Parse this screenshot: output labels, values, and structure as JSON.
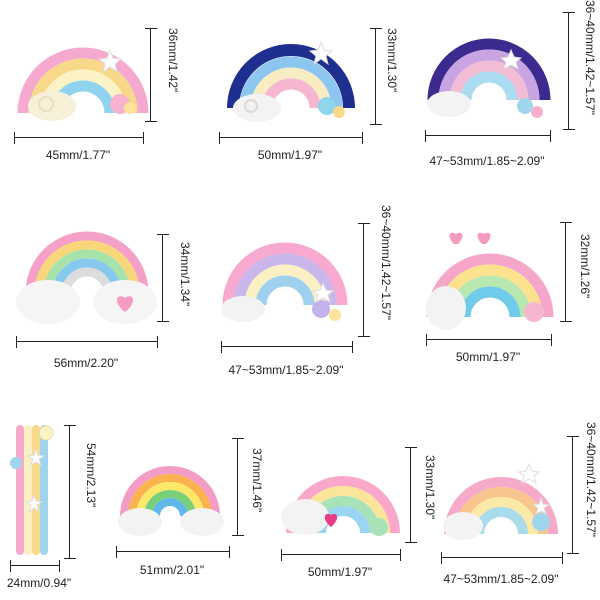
{
  "items": [
    {
      "id": "rainbow-1",
      "width_label": "45mm/1.77\"",
      "height_label": "36mm/1.42\""
    },
    {
      "id": "rainbow-2",
      "width_label": "50mm/1.97\"",
      "height_label": "33mm/1.30\""
    },
    {
      "id": "rainbow-3",
      "width_label": "47~53mm/1.85~2.09\"",
      "height_label": "36~40mm/1.42~1.57\""
    },
    {
      "id": "rainbow-4",
      "width_label": "56mm/2.20\"",
      "height_label": "34mm/1.34\""
    },
    {
      "id": "rainbow-5",
      "width_label": "47~53mm/1.85~2.09\"",
      "height_label": "36~40mm/1.42~1.57\""
    },
    {
      "id": "rainbow-6",
      "width_label": "50mm/1.97\"",
      "height_label": "32mm/1.26\""
    },
    {
      "id": "rainbow-7",
      "width_label": "24mm/0.94\"",
      "height_label": "54mm/2.13\""
    },
    {
      "id": "rainbow-8",
      "width_label": "51mm/2.01\"",
      "height_label": "37mm/1.46\""
    },
    {
      "id": "rainbow-9",
      "width_label": "50mm/1.97\"",
      "height_label": "33mm/1.30\""
    },
    {
      "id": "rainbow-10",
      "width_label": "47~53mm/1.85~2.09\"",
      "height_label": "36~40mm/1.42~1.57\""
    }
  ],
  "palettes": {
    "pastel": [
      "#f6a9cf",
      "#f8d98a",
      "#fbf3c6",
      "#8fd3ee"
    ],
    "navy": [
      "#1f2f8f",
      "#8cc5f0",
      "#f7ecc2",
      "#f7b6cf"
    ],
    "purple": [
      "#3c2a8e",
      "#c8a4e2",
      "#f3bcd5",
      "#a9dcf0"
    ],
    "classic": [
      "#f5a0c8",
      "#f8d77a",
      "#a6e2a9",
      "#86c9ef"
    ],
    "lavender": [
      "#f7a9d0",
      "#c9b6ea",
      "#fbf0c4",
      "#9fd0ef"
    ],
    "sunny": [
      "#f5a6c9",
      "#fde28e",
      "#b9e7b0",
      "#6fcbe9"
    ],
    "bright": [
      "#f39cc6",
      "#fbb34f",
      "#fde86a",
      "#7ad07a",
      "#5fb7ea"
    ],
    "mint": [
      "#f9a8cb",
      "#fbe59a",
      "#a7e3b7",
      "#9cd5f1"
    ],
    "peach": [
      "#f6aac9",
      "#f9c58f",
      "#fbe9a8",
      "#a9dbea"
    ]
  }
}
